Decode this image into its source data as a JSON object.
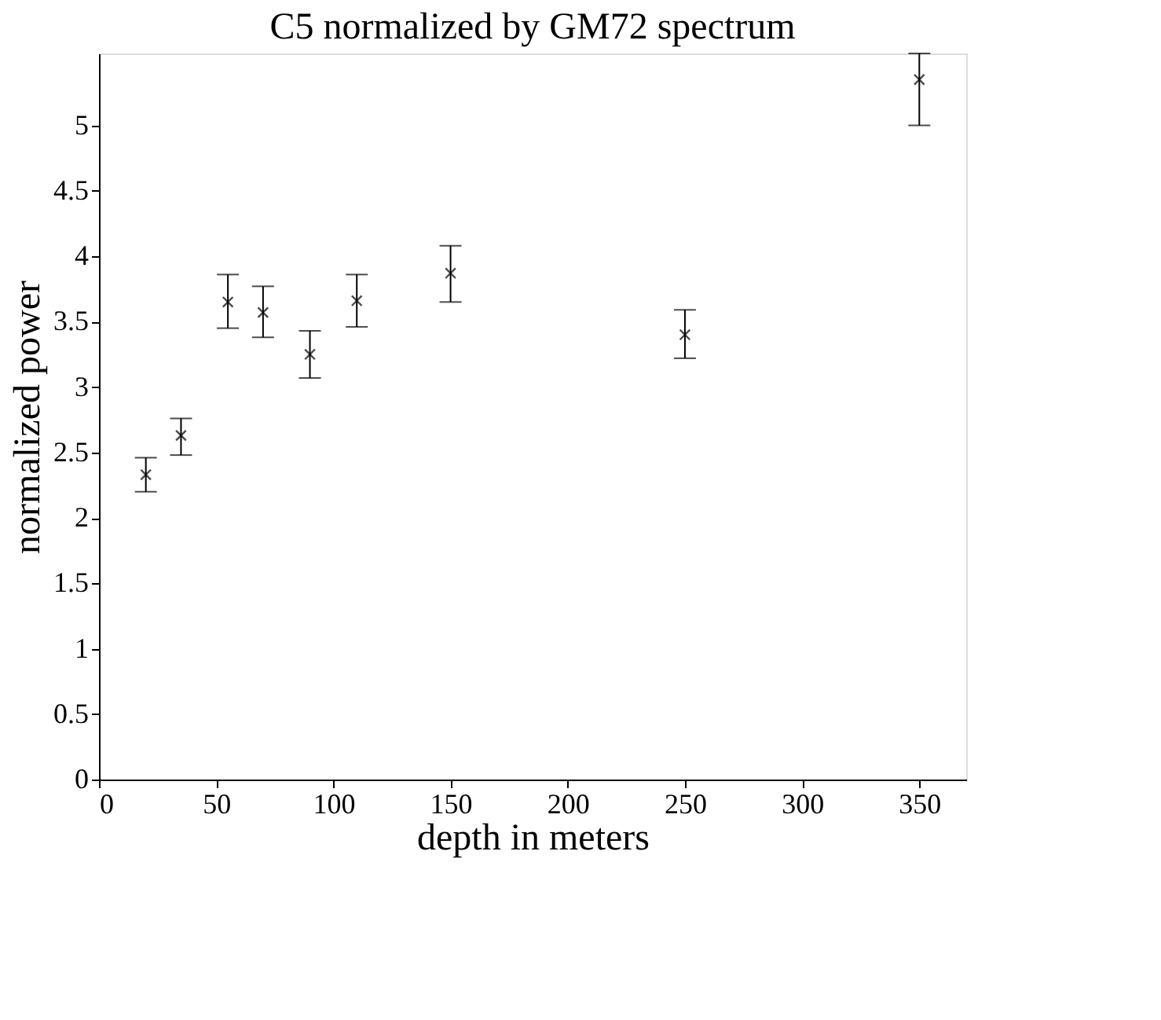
{
  "chart_data": {
    "type": "scatter",
    "title": "C5 normalized by GM72 spectrum",
    "xlabel": "depth in meters",
    "ylabel": "normalized power",
    "x": [
      20,
      35,
      55,
      70,
      90,
      110,
      150,
      250,
      350
    ],
    "values": [
      2.33,
      2.63,
      3.65,
      3.57,
      3.25,
      3.66,
      3.87,
      3.4,
      5.35
    ],
    "errors": [
      [
        2.2,
        2.46
      ],
      [
        2.48,
        2.76
      ],
      [
        3.45,
        3.86
      ],
      [
        3.38,
        3.77
      ],
      [
        3.07,
        3.43
      ],
      [
        3.46,
        3.86
      ],
      [
        3.65,
        4.08
      ],
      [
        3.22,
        3.59
      ],
      [
        5.0,
        5.55
      ]
    ],
    "color": "#000000",
    "marker": "cross",
    "xlim": [
      0,
      370
    ],
    "xticks": [
      0,
      50,
      100,
      150,
      200,
      250,
      300,
      350
    ],
    "ylim": [
      0,
      5.55
    ],
    "yticks": [
      0,
      0.5,
      1,
      1.5,
      2,
      2.5,
      3,
      3.5,
      4,
      4.5,
      5
    ],
    "grid": false
  }
}
